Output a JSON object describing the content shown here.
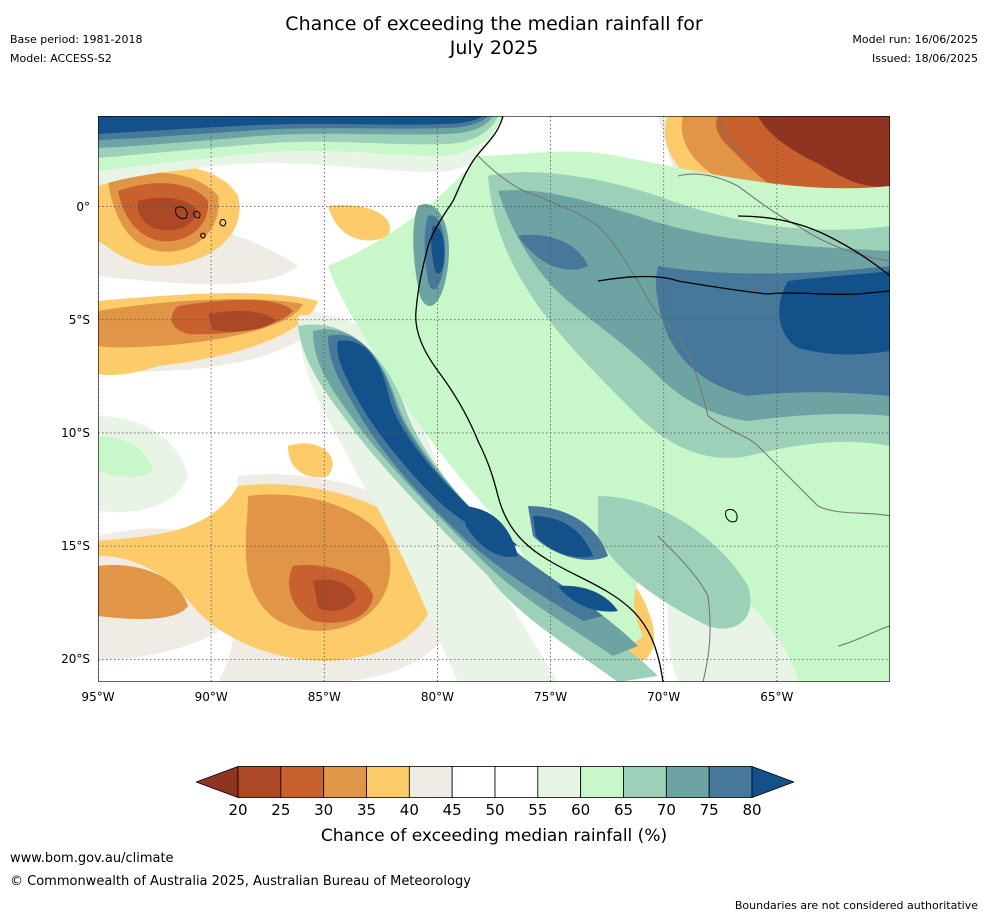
{
  "title_line1": "Chance of exceeding the median rainfall for",
  "title_line2": "July 2025",
  "meta_left": {
    "base_period": "Base period: 1981-2018",
    "model": "Model: ACCESS-S2"
  },
  "meta_right": {
    "model_run": "Model run: 16/06/2025",
    "issued": "Issued: 18/06/2025"
  },
  "lat_labels": [
    "0°",
    "5°S",
    "10°S",
    "15°S",
    "20°S"
  ],
  "lat_values": [
    0,
    -5,
    -10,
    -15,
    -20
  ],
  "lon_labels": [
    "95°W",
    "90°W",
    "85°W",
    "80°W",
    "75°W",
    "70°W",
    "65°W"
  ],
  "lon_values": [
    -95,
    -90,
    -85,
    -80,
    -75,
    -70,
    -65
  ],
  "extent": {
    "lon_min": -95,
    "lon_max": -60,
    "lat_min": -21,
    "lat_max": 4
  },
  "colorbar": {
    "ticks": [
      "20",
      "25",
      "30",
      "35",
      "40",
      "45",
      "50",
      "55",
      "60",
      "65",
      "70",
      "75",
      "80"
    ],
    "colors": [
      "#ac4825",
      "#c8612e",
      "#e09646",
      "#fdcb6a",
      "#efece6",
      "#ffffff",
      "#ffffff",
      "#e8f4e6",
      "#c8f8c9",
      "#9dd0b8",
      "#6ea3a3",
      "#45789b"
    ],
    "under_color": "#8f3420",
    "over_color": "#12518a",
    "label": "Chance of exceeding median rainfall (%)"
  },
  "footer": {
    "url": "www.bom.gov.au/climate",
    "copyright": "© Commonwealth of Australia 2025, Australian Bureau of Meteorology",
    "disclaimer": "Boundaries are not considered authoritative"
  }
}
